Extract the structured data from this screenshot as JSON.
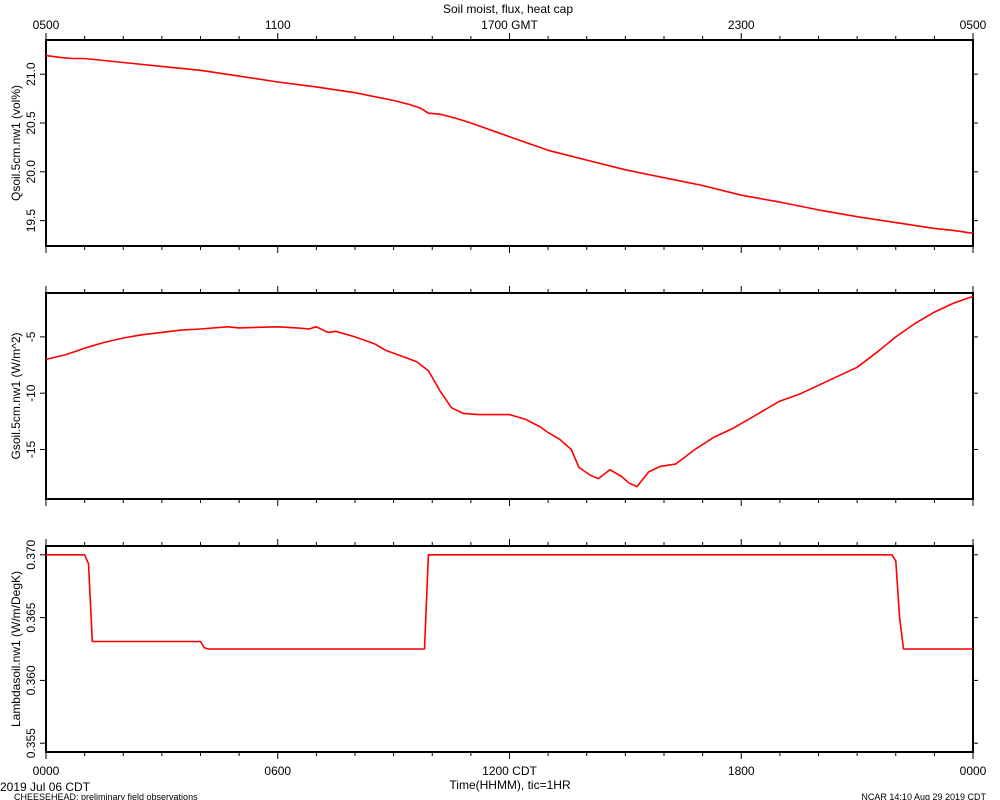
{
  "header": {
    "title": "Soil moist, flux, heat cap",
    "top_ticks": [
      "0500",
      "1100",
      "1700 GMT",
      "2300",
      "0500"
    ]
  },
  "footer": {
    "date_label": "2019 Jul 06 CDT",
    "project_label": "CHEESEHEAD: preliminary field observations",
    "stamp": "NCAR 14:10 Aug 29 2019 CDT",
    "xlabel": "Time(HHMM), tic=1HR",
    "bottom_ticks": [
      "0000",
      "0600",
      "1200 CDT",
      "1800",
      "0000"
    ]
  },
  "colors": {
    "line": "#ff0000",
    "axes": "#000000"
  },
  "chart_data": [
    {
      "type": "line",
      "ylabel": "Qsoil.5cm.nw1 (vol%)",
      "ylim": [
        19.24,
        21.35
      ],
      "yticks": [
        19.5,
        20.0,
        20.5,
        21.0
      ],
      "ytick_labels": [
        "19.5",
        "20.0",
        "20.5",
        "21.0"
      ],
      "xlim": [
        0,
        24
      ],
      "series": [
        {
          "x": [
            0,
            0.4,
            0.7,
            1.0,
            1.5,
            2.0,
            3.0,
            4.0,
            5.0,
            6.0,
            7.0,
            8.0,
            9.0,
            9.4,
            9.7,
            9.9,
            10.2,
            10.6,
            11.0,
            12.0,
            13.0,
            13.5,
            14.0,
            15.0,
            16.0,
            17.0,
            18.0,
            19.0,
            20.0,
            21.0,
            22.0,
            23.0,
            23.5,
            24.0
          ],
          "y": [
            21.19,
            21.17,
            21.16,
            21.16,
            21.14,
            21.12,
            21.08,
            21.04,
            20.98,
            20.92,
            20.87,
            20.81,
            20.73,
            20.69,
            20.65,
            20.6,
            20.59,
            20.55,
            20.5,
            20.36,
            20.22,
            20.17,
            20.12,
            20.02,
            19.94,
            19.86,
            19.76,
            19.69,
            19.61,
            19.54,
            19.48,
            19.42,
            19.4,
            19.37
          ]
        }
      ]
    },
    {
      "type": "line",
      "ylabel": "Gsoil.5cm.nw1 (W/m^2)",
      "ylim": [
        -19.4,
        -1.1
      ],
      "yticks": [
        -15,
        -10,
        -5
      ],
      "ytick_labels": [
        "-15",
        "-10",
        "-5"
      ],
      "xlim": [
        0,
        24
      ],
      "series": [
        {
          "x": [
            0,
            0.5,
            1.0,
            1.5,
            2.0,
            2.5,
            3.0,
            3.5,
            4.0,
            4.7,
            5.0,
            5.5,
            6.0,
            6.5,
            6.8,
            7.0,
            7.3,
            7.5,
            8.0,
            8.5,
            8.8,
            9.2,
            9.6,
            9.9,
            10.2,
            10.5,
            10.8,
            11.2,
            11.6,
            12.0,
            12.4,
            12.8,
            13.0,
            13.3,
            13.6,
            13.8,
            14.1,
            14.3,
            14.6,
            14.9,
            15.1,
            15.3,
            15.6,
            15.9,
            16.3,
            16.8,
            17.3,
            17.8,
            18.2,
            18.6,
            18.8,
            19.0,
            19.5,
            20.0,
            20.5,
            21.0,
            21.5,
            22.0,
            22.5,
            23.0,
            23.5,
            24.0
          ],
          "y": [
            -7.0,
            -6.6,
            -6.0,
            -5.5,
            -5.1,
            -4.8,
            -4.6,
            -4.4,
            -4.3,
            -4.1,
            -4.2,
            -4.15,
            -4.1,
            -4.2,
            -4.3,
            -4.1,
            -4.6,
            -4.5,
            -5.0,
            -5.6,
            -6.2,
            -6.7,
            -7.2,
            -8.0,
            -9.8,
            -11.3,
            -11.8,
            -11.9,
            -11.9,
            -11.9,
            -12.3,
            -13.0,
            -13.5,
            -14.1,
            -15.0,
            -16.6,
            -17.3,
            -17.6,
            -16.8,
            -17.4,
            -18.0,
            -18.3,
            -17.0,
            -16.5,
            -16.3,
            -15.0,
            -13.9,
            -13.1,
            -12.3,
            -11.5,
            -11.1,
            -10.7,
            -10.1,
            -9.3,
            -8.5,
            -7.7,
            -6.4,
            -5.0,
            -3.8,
            -2.8,
            -2.0,
            -1.4
          ]
        }
      ]
    },
    {
      "type": "line",
      "ylabel": "Lambdasoil.nw1 (W/m/DegK)",
      "ylim": [
        0.3543,
        0.3707
      ],
      "yticks": [
        0.355,
        0.36,
        0.365,
        0.37
      ],
      "ytick_labels": [
        "0.355",
        "0.360",
        "0.365",
        "0.370"
      ],
      "xlim": [
        0,
        24
      ],
      "series": [
        {
          "x": [
            0,
            1.0,
            1.1,
            1.2,
            4.0,
            4.1,
            4.2,
            9.8,
            9.9,
            21.9,
            22.0,
            22.1,
            22.2,
            24.0
          ],
          "y": [
            0.37,
            0.37,
            0.3693,
            0.3631,
            0.3631,
            0.3626,
            0.3625,
            0.3625,
            0.37,
            0.37,
            0.3695,
            0.365,
            0.3625,
            0.3625
          ]
        }
      ]
    }
  ]
}
